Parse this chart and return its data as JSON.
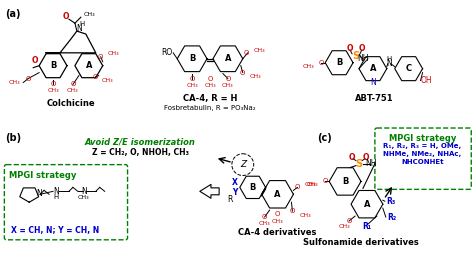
{
  "figure_width": 4.74,
  "figure_height": 2.59,
  "dpi": 100,
  "bg_color": "#ffffff",
  "label_a": "(a)",
  "label_b": "(b)",
  "label_c": "(c)",
  "colchicine_label": "Colchicine",
  "ca4_label": "CA-4, R = H",
  "fosbre_label": "Fosbretabulin, R = PO₃Na₂",
  "abt_label": "ABT-751",
  "avoid_text": "Avoid Z/E isomerization",
  "z_eq": "Z = CH₂, O, NHOH, CH₃",
  "mpgi_strategy_b": "MPGI strategy",
  "xy_eq": "X = CH, N; Y = CH, N",
  "ca4_deriv": "CA-4 derivatives",
  "sulfonamide_deriv": "Sulfonamide derivatives",
  "mpgi_strategy_c": "MPGI strategy",
  "r123_line1": "R₁, R₂, R₃ = H, OMe,",
  "r123_line2": "NHMe, NMe₂, NHAc,",
  "r123_line3": "NHCONHEt",
  "green_color": "#008000",
  "blue_color": "#0000cc",
  "red_color": "#cc0000",
  "orange_color": "#ff8c00",
  "black_color": "#000000",
  "gray_color": "#555555"
}
